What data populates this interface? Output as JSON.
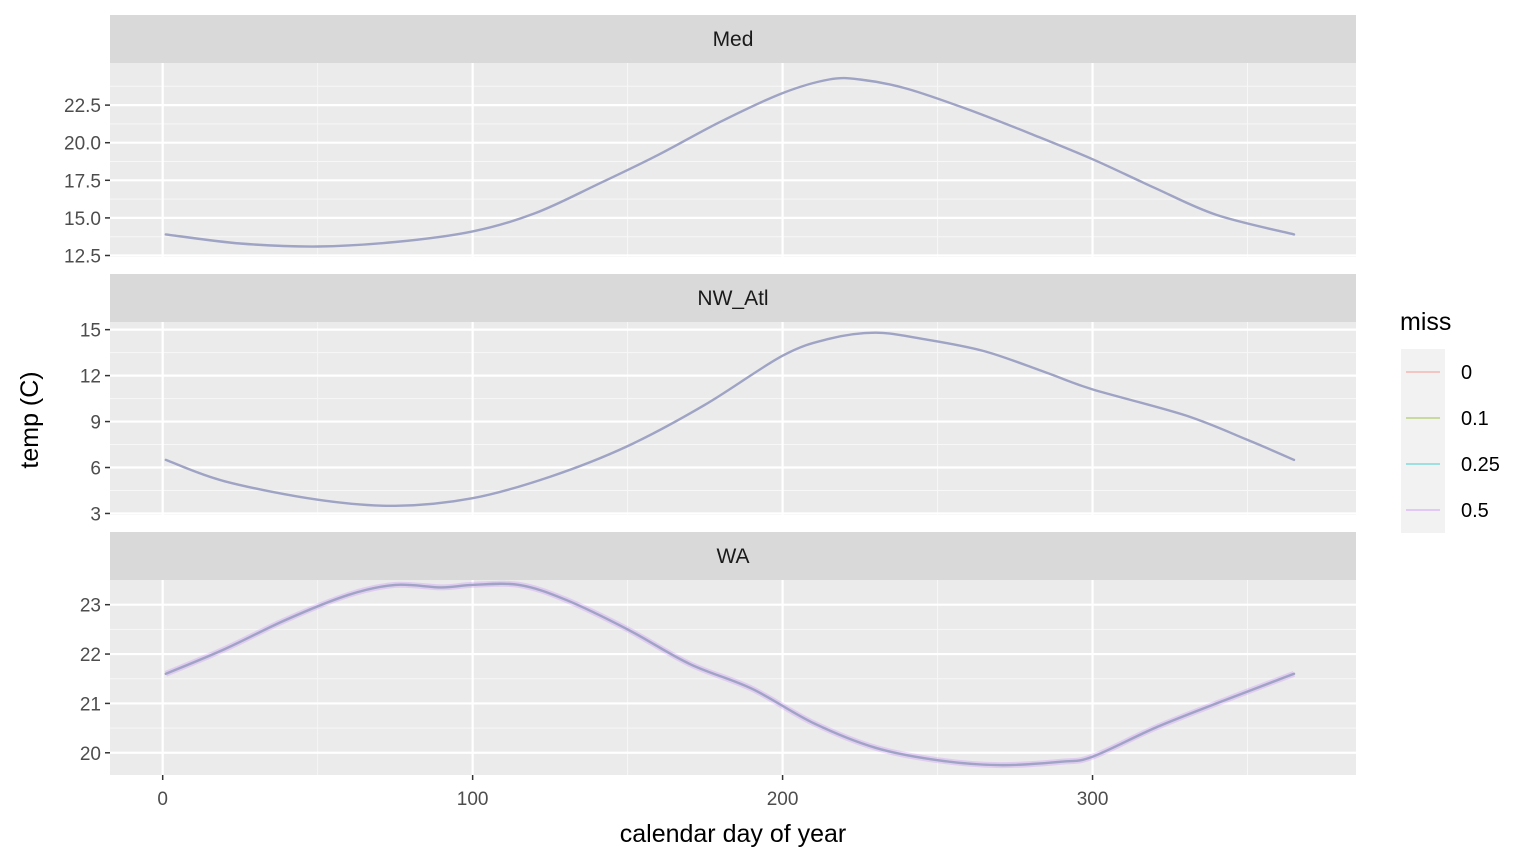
{
  "chart_data": {
    "type": "line",
    "facet_layout": "stacked",
    "xlabel": "calendar day of year",
    "ylabel": "temp (C)",
    "xlim": [
      -17,
      385
    ],
    "x_ticks": [
      0,
      100,
      200,
      300
    ],
    "x_tick_labels": [
      "0",
      "100",
      "200",
      "300"
    ],
    "legend": {
      "title": "miss",
      "position": "right",
      "entries": [
        {
          "label": "0",
          "color": "#F8766D"
        },
        {
          "label": "0.1",
          "color": "#7CAE00"
        },
        {
          "label": "0.25",
          "color": "#00BFC4"
        },
        {
          "label": "0.5",
          "color": "#C77CFF"
        }
      ]
    },
    "line_color_overlap": "#9FA3C4",
    "panels": [
      {
        "strip": "Med",
        "ylim": [
          12.4,
          25.3
        ],
        "y_ticks": [
          12.5,
          15.0,
          17.5,
          20.0,
          22.5
        ],
        "y_tick_labels": [
          "12.5",
          "15.0",
          "17.5",
          "20.0",
          "22.5"
        ],
        "series": [
          {
            "x": [
              1,
              25,
              50,
              75,
              100,
              120,
              140,
              160,
              180,
              200,
              215,
              225,
              240,
              260,
              280,
              300,
              320,
              340,
              365
            ],
            "y": [
              13.9,
              13.3,
              13.1,
              13.4,
              14.1,
              15.3,
              17.2,
              19.2,
              21.4,
              23.3,
              24.2,
              24.2,
              23.6,
              22.2,
              20.6,
              18.9,
              17.0,
              15.2,
              13.9
            ]
          }
        ]
      },
      {
        "strip": "NW_Atl",
        "ylim": [
          2.9,
          15.5
        ],
        "y_ticks": [
          3,
          6,
          9,
          12,
          15
        ],
        "y_tick_labels": [
          "3",
          "6",
          "9",
          "12",
          "15"
        ],
        "series": [
          {
            "x": [
              1,
              20,
              50,
              75,
              100,
              125,
              150,
              175,
              200,
              215,
              230,
              245,
              265,
              285,
              300,
              330,
              350,
              365
            ],
            "y": [
              6.5,
              5.1,
              3.9,
              3.5,
              4.0,
              5.4,
              7.4,
              10.1,
              13.3,
              14.4,
              14.8,
              14.4,
              13.6,
              12.2,
              11.1,
              9.4,
              7.8,
              6.5
            ]
          }
        ]
      },
      {
        "strip": "WA",
        "ylim": [
          19.55,
          23.5
        ],
        "y_ticks": [
          20,
          21,
          22,
          23
        ],
        "y_tick_labels": [
          "20",
          "21",
          "22",
          "23"
        ],
        "series": [
          {
            "name": "0.5",
            "x": [
              1,
              20,
              40,
              60,
              75,
              90,
              100,
              115,
              130,
              150,
              170,
              190,
              210,
              230,
              250,
              270,
              290,
              300,
              320,
              340,
              365
            ],
            "y": [
              21.6,
              22.1,
              22.7,
              23.2,
              23.4,
              23.35,
              23.4,
              23.4,
              23.1,
              22.5,
              21.8,
              21.3,
              20.6,
              20.1,
              19.85,
              19.75,
              19.82,
              19.92,
              20.5,
              21.0,
              21.6
            ]
          }
        ]
      }
    ]
  }
}
